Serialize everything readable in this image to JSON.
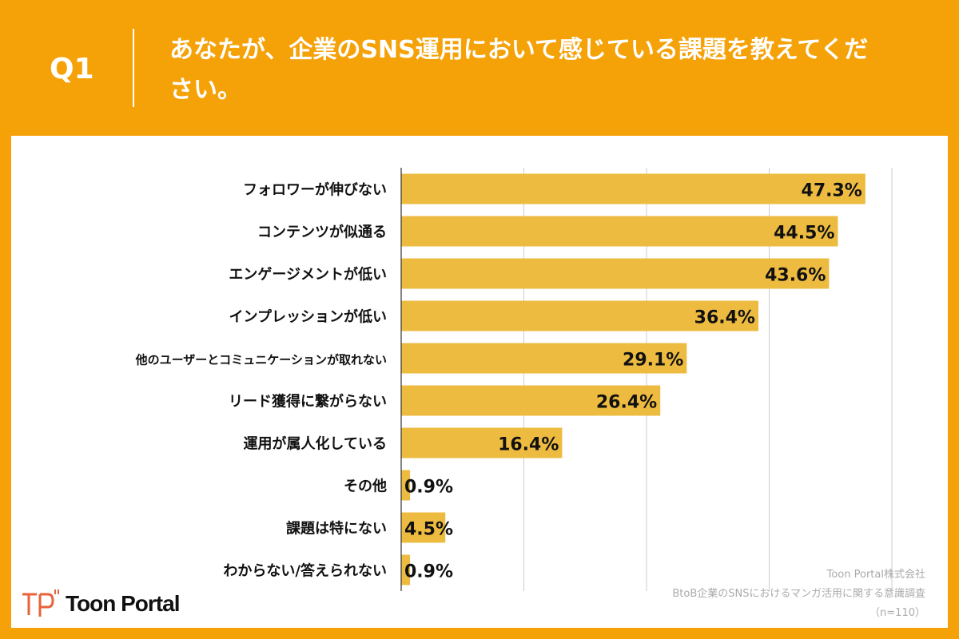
{
  "header": {
    "question_no": "Q1",
    "title": "あなたが、企業のSNS運用において感じている課題を教えてください。"
  },
  "chart_data": {
    "type": "bar",
    "orientation": "horizontal",
    "categories": [
      "フォロワーが伸びない",
      "コンテンツが似通る",
      "エンゲージメントが低い",
      "インプレッションが低い",
      "他のユーザーとコミュニケーションが取れない",
      "リード獲得に繋がらない",
      "運用が属人化している",
      "その他",
      "課題は特にない",
      "わからない/答えられない"
    ],
    "values": [
      47.3,
      44.5,
      43.6,
      36.4,
      29.1,
      26.4,
      16.4,
      0.9,
      4.5,
      0.9
    ],
    "value_labels": [
      "47.3%",
      "44.5%",
      "43.6%",
      "36.4%",
      "29.1%",
      "26.4%",
      "16.4%",
      "0.9%",
      "4.5%",
      "0.9%"
    ],
    "xlim": [
      0,
      50
    ],
    "grid": true,
    "grid_step": 12.5,
    "bar_color": "#EDBB40"
  },
  "footer": {
    "company": "Toon Portal株式会社",
    "survey": "BtoB企業のSNSにおけるマンガ活用に関する意識調査",
    "n": "（n=110）"
  },
  "logo": {
    "text": "Toon Portal",
    "icon": "tp-logo-icon"
  }
}
